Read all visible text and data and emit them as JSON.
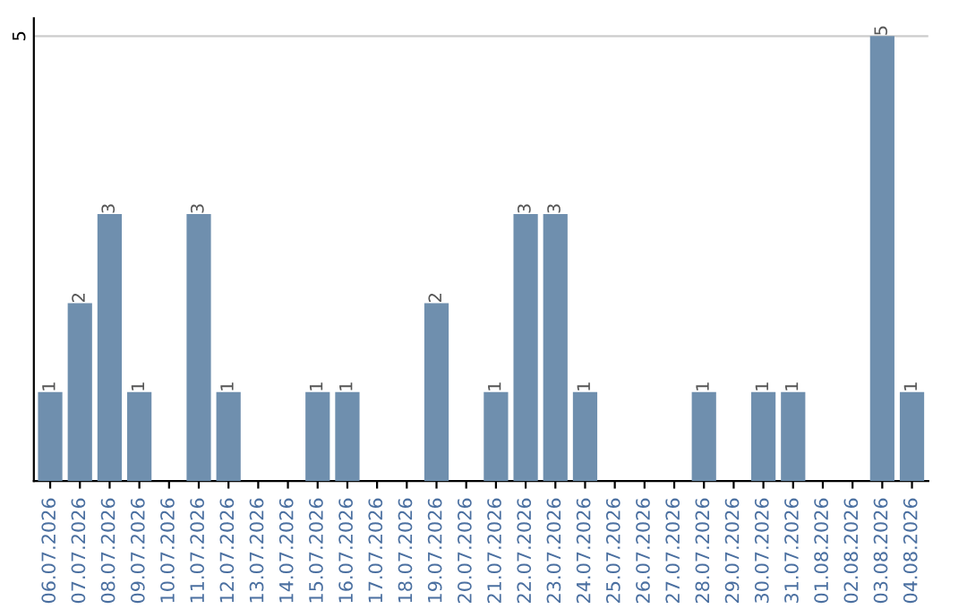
{
  "chart_data": {
    "type": "bar",
    "categories": [
      "06.07.2026",
      "07.07.2026",
      "08.07.2026",
      "09.07.2026",
      "10.07.2026",
      "11.07.2026",
      "12.07.2026",
      "13.07.2026",
      "14.07.2026",
      "15.07.2026",
      "16.07.2026",
      "17.07.2026",
      "18.07.2026",
      "19.07.2026",
      "20.07.2026",
      "21.07.2026",
      "22.07.2026",
      "23.07.2026",
      "24.07.2026",
      "25.07.2026",
      "26.07.2026",
      "27.07.2026",
      "28.07.2026",
      "29.07.2026",
      "30.07.2026",
      "31.07.2026",
      "01.08.2026",
      "02.08.2026",
      "03.08.2026",
      "04.08.2026"
    ],
    "values": [
      1,
      2,
      3,
      1,
      0,
      3,
      1,
      0,
      0,
      1,
      1,
      0,
      0,
      2,
      0,
      1,
      3,
      3,
      1,
      0,
      0,
      0,
      1,
      0,
      1,
      1,
      0,
      0,
      5,
      1
    ],
    "value_labels": [
      "1",
      "2",
      "3",
      "1",
      null,
      "3",
      "1",
      null,
      null,
      "1",
      "1",
      null,
      null,
      "2",
      null,
      "1",
      "3",
      "3",
      "1",
      null,
      null,
      null,
      "1",
      null,
      "1",
      "1",
      null,
      null,
      "5",
      "1"
    ],
    "color": "#6f8fae",
    "ylim": [
      0,
      5.2
    ],
    "yticks": [
      5
    ],
    "grid": "y"
  }
}
